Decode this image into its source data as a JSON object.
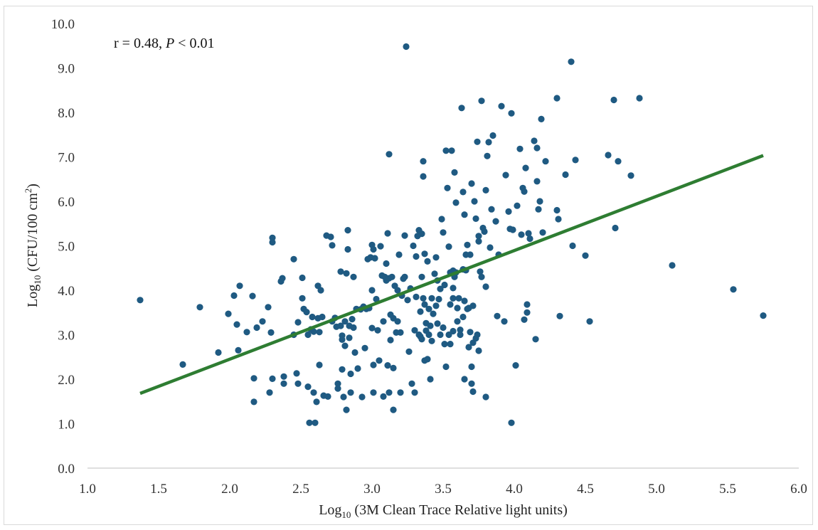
{
  "chart_data": {
    "type": "scatter",
    "xlabel": {
      "base": "Log",
      "sub": "10",
      "rest": " (3M Clean Trace Relative light units)"
    },
    "ylabel": {
      "base": "Log",
      "sub": "10",
      "rest": " (CFU/100 cm",
      "sup": "2",
      "end": ")"
    },
    "annotation": {
      "pre": "r = 0.48, ",
      "italic": "P",
      "post": " < 0.01"
    },
    "xlim": [
      1.0,
      6.0
    ],
    "ylim": [
      0.0,
      10.0
    ],
    "x_ticks": [
      "1.0",
      "1.5",
      "2.0",
      "2.5",
      "3.0",
      "3.5",
      "4.0",
      "4.5",
      "5.0",
      "5.5",
      "6.0"
    ],
    "y_ticks": [
      "0.0",
      "1.0",
      "2.0",
      "3.0",
      "4.0",
      "5.0",
      "6.0",
      "7.0",
      "8.0",
      "9.0",
      "10.0"
    ],
    "grid": false,
    "point_color": "#1f5a82",
    "trend_color": "#2e7d32",
    "trendline": {
      "x": [
        1.37,
        5.75
      ],
      "y": [
        1.68,
        7.03
      ]
    },
    "points": [
      [
        1.37,
        3.78
      ],
      [
        1.67,
        2.33
      ],
      [
        1.79,
        3.62
      ],
      [
        1.92,
        2.6
      ],
      [
        1.99,
        3.47
      ],
      [
        2.03,
        3.88
      ],
      [
        2.05,
        3.23
      ],
      [
        2.07,
        4.1
      ],
      [
        2.06,
        2.65
      ],
      [
        2.12,
        3.06
      ],
      [
        2.16,
        3.87
      ],
      [
        2.17,
        2.02
      ],
      [
        2.17,
        1.49
      ],
      [
        2.19,
        3.16
      ],
      [
        2.23,
        3.3
      ],
      [
        2.27,
        3.62
      ],
      [
        2.28,
        1.7
      ],
      [
        2.29,
        3.05
      ],
      [
        2.3,
        5.18
      ],
      [
        2.3,
        5.08
      ],
      [
        2.3,
        2.01
      ],
      [
        2.36,
        4.2
      ],
      [
        2.37,
        4.27
      ],
      [
        2.38,
        2.06
      ],
      [
        2.38,
        1.9
      ],
      [
        2.45,
        4.7
      ],
      [
        2.45,
        3.0
      ],
      [
        2.47,
        2.13
      ],
      [
        2.48,
        3.28
      ],
      [
        2.48,
        1.9
      ],
      [
        2.51,
        3.82
      ],
      [
        2.51,
        4.28
      ],
      [
        2.52,
        3.58
      ],
      [
        2.54,
        3.51
      ],
      [
        2.55,
        3.0
      ],
      [
        2.55,
        1.83
      ],
      [
        2.56,
        1.02
      ],
      [
        2.57,
        3.12
      ],
      [
        2.58,
        3.4
      ],
      [
        2.59,
        3.07
      ],
      [
        2.59,
        1.7
      ],
      [
        2.6,
        1.02
      ],
      [
        2.61,
        1.49
      ],
      [
        2.62,
        4.1
      ],
      [
        2.62,
        3.37
      ],
      [
        2.63,
        3.06
      ],
      [
        2.63,
        2.32
      ],
      [
        2.64,
        4.0
      ],
      [
        2.65,
        3.4
      ],
      [
        2.66,
        1.63
      ],
      [
        2.68,
        5.23
      ],
      [
        2.69,
        1.61
      ],
      [
        2.71,
        5.2
      ],
      [
        2.72,
        3.3
      ],
      [
        2.72,
        5.01
      ],
      [
        2.74,
        3.38
      ],
      [
        2.75,
        3.18
      ],
      [
        2.76,
        1.9
      ],
      [
        2.76,
        1.79
      ],
      [
        2.78,
        4.42
      ],
      [
        2.78,
        3.2
      ],
      [
        2.79,
        2.98
      ],
      [
        2.79,
        2.89
      ],
      [
        2.79,
        2.22
      ],
      [
        2.8,
        1.6
      ],
      [
        2.81,
        3.3
      ],
      [
        2.81,
        2.75
      ],
      [
        2.82,
        4.38
      ],
      [
        2.82,
        1.31
      ],
      [
        2.83,
        5.35
      ],
      [
        2.83,
        4.92
      ],
      [
        2.84,
        3.2
      ],
      [
        2.84,
        2.93
      ],
      [
        2.85,
        1.7
      ],
      [
        2.85,
        2.12
      ],
      [
        2.86,
        3.35
      ],
      [
        2.87,
        4.3
      ],
      [
        2.87,
        3.16
      ],
      [
        2.88,
        2.6
      ],
      [
        2.89,
        3.58
      ],
      [
        2.9,
        2.24
      ],
      [
        2.92,
        3.57
      ],
      [
        2.93,
        1.6
      ],
      [
        2.94,
        3.63
      ],
      [
        2.95,
        2.7
      ],
      [
        2.96,
        3.58
      ],
      [
        2.97,
        4.7
      ],
      [
        2.98,
        3.6
      ],
      [
        2.99,
        4.74
      ],
      [
        3.0,
        5.02
      ],
      [
        3.0,
        4.0
      ],
      [
        3.0,
        3.15
      ],
      [
        3.01,
        4.92
      ],
      [
        3.01,
        2.32
      ],
      [
        3.01,
        1.7
      ],
      [
        3.02,
        4.72
      ],
      [
        3.03,
        3.8
      ],
      [
        3.04,
        3.1
      ],
      [
        3.05,
        2.42
      ],
      [
        3.06,
        4.99
      ],
      [
        3.07,
        4.33
      ],
      [
        3.08,
        3.3
      ],
      [
        3.08,
        1.61
      ],
      [
        3.09,
        4.3
      ],
      [
        3.1,
        4.6
      ],
      [
        3.1,
        4.22
      ],
      [
        3.11,
        2.31
      ],
      [
        3.11,
        5.28
      ],
      [
        3.12,
        7.06
      ],
      [
        3.12,
        4.27
      ],
      [
        3.12,
        1.7
      ],
      [
        3.13,
        2.88
      ],
      [
        3.13,
        3.45
      ],
      [
        3.14,
        4.3
      ],
      [
        3.15,
        2.25
      ],
      [
        3.15,
        3.37
      ],
      [
        3.15,
        1.31
      ],
      [
        3.16,
        4.1
      ],
      [
        3.17,
        3.05
      ],
      [
        3.18,
        3.3
      ],
      [
        3.18,
        4.0
      ],
      [
        3.19,
        4.8
      ],
      [
        3.2,
        1.7
      ],
      [
        3.2,
        3.05
      ],
      [
        3.21,
        3.88
      ],
      [
        3.22,
        4.26
      ],
      [
        3.23,
        4.3
      ],
      [
        3.23,
        5.23
      ],
      [
        3.24,
        9.48
      ],
      [
        3.25,
        3.78
      ],
      [
        3.26,
        2.62
      ],
      [
        3.27,
        4.04
      ],
      [
        3.28,
        1.9
      ],
      [
        3.29,
        5.0
      ],
      [
        3.3,
        3.1
      ],
      [
        3.3,
        1.7
      ],
      [
        3.31,
        3.85
      ],
      [
        3.31,
        4.76
      ],
      [
        3.32,
        5.22
      ],
      [
        3.33,
        5.35
      ],
      [
        3.33,
        3.0
      ],
      [
        3.34,
        3.52
      ],
      [
        3.34,
        2.96
      ],
      [
        3.35,
        5.27
      ],
      [
        3.35,
        4.3
      ],
      [
        3.35,
        2.9
      ],
      [
        3.36,
        6.56
      ],
      [
        3.36,
        6.9
      ],
      [
        3.36,
        3.82
      ],
      [
        3.37,
        3.68
      ],
      [
        3.37,
        4.82
      ],
      [
        3.37,
        2.42
      ],
      [
        3.38,
        3.26
      ],
      [
        3.38,
        3.09
      ],
      [
        3.39,
        4.65
      ],
      [
        3.39,
        2.45
      ],
      [
        3.4,
        3.58
      ],
      [
        3.4,
        3.0
      ],
      [
        3.41,
        3.2
      ],
      [
        3.41,
        2.0
      ],
      [
        3.42,
        3.82
      ],
      [
        3.42,
        2.86
      ],
      [
        3.43,
        3.47
      ],
      [
        3.44,
        4.37
      ],
      [
        3.45,
        4.74
      ],
      [
        3.45,
        3.65
      ],
      [
        3.46,
        4.22
      ],
      [
        3.46,
        3.25
      ],
      [
        3.47,
        3.8
      ],
      [
        3.48,
        4.03
      ],
      [
        3.48,
        3.0
      ],
      [
        3.49,
        5.6
      ],
      [
        3.5,
        5.3
      ],
      [
        3.5,
        3.16
      ],
      [
        3.51,
        4.12
      ],
      [
        3.51,
        2.79
      ],
      [
        3.52,
        7.14
      ],
      [
        3.52,
        2.28
      ],
      [
        3.53,
        6.3
      ],
      [
        3.54,
        4.98
      ],
      [
        3.54,
        3.0
      ],
      [
        3.55,
        4.4
      ],
      [
        3.55,
        3.68
      ],
      [
        3.55,
        2.79
      ],
      [
        3.56,
        7.14
      ],
      [
        3.57,
        4.44
      ],
      [
        3.57,
        3.82
      ],
      [
        3.57,
        4.05
      ],
      [
        3.57,
        3.08
      ],
      [
        3.58,
        6.65
      ],
      [
        3.58,
        4.3
      ],
      [
        3.59,
        5.97
      ],
      [
        3.59,
        4.4
      ],
      [
        3.6,
        3.3
      ],
      [
        3.6,
        3.6
      ],
      [
        3.61,
        3.82
      ],
      [
        3.62,
        3.11
      ],
      [
        3.62,
        3.0
      ],
      [
        3.63,
        8.1
      ],
      [
        3.64,
        6.21
      ],
      [
        3.64,
        4.47
      ],
      [
        3.64,
        3.4
      ],
      [
        3.65,
        5.7
      ],
      [
        3.65,
        3.76
      ],
      [
        3.65,
        2.0
      ],
      [
        3.66,
        4.45
      ],
      [
        3.66,
        4.8
      ],
      [
        3.67,
        5.02
      ],
      [
        3.67,
        3.58
      ],
      [
        3.68,
        3.6
      ],
      [
        3.68,
        2.72
      ],
      [
        3.69,
        4.8
      ],
      [
        3.69,
        3.06
      ],
      [
        3.7,
        6.4
      ],
      [
        3.7,
        2.28
      ],
      [
        3.7,
        1.9
      ],
      [
        3.71,
        3.65
      ],
      [
        3.71,
        2.82
      ],
      [
        3.71,
        1.72
      ],
      [
        3.72,
        6.0
      ],
      [
        3.73,
        5.61
      ],
      [
        3.73,
        2.92
      ],
      [
        3.74,
        7.34
      ],
      [
        3.74,
        3.0
      ],
      [
        3.75,
        5.1
      ],
      [
        3.75,
        5.22
      ],
      [
        3.75,
        2.64
      ],
      [
        3.76,
        4.42
      ],
      [
        3.77,
        8.26
      ],
      [
        3.77,
        4.3
      ],
      [
        3.78,
        5.4
      ],
      [
        3.79,
        5.32
      ],
      [
        3.8,
        6.25
      ],
      [
        3.8,
        4.08
      ],
      [
        3.8,
        1.6
      ],
      [
        3.81,
        7.02
      ],
      [
        3.82,
        7.33
      ],
      [
        3.83,
        4.96
      ],
      [
        3.84,
        5.82
      ],
      [
        3.85,
        7.48
      ],
      [
        3.87,
        5.55
      ],
      [
        3.88,
        3.42
      ],
      [
        3.89,
        4.8
      ],
      [
        3.91,
        8.14
      ],
      [
        3.93,
        3.3
      ],
      [
        3.94,
        6.59
      ],
      [
        3.96,
        5.77
      ],
      [
        3.97,
        5.38
      ],
      [
        3.98,
        1.02
      ],
      [
        3.98,
        7.98
      ],
      [
        3.99,
        5.36
      ],
      [
        4.01,
        2.31
      ],
      [
        4.02,
        5.9
      ],
      [
        4.04,
        7.18
      ],
      [
        4.05,
        5.25
      ],
      [
        4.06,
        6.3
      ],
      [
        4.07,
        3.34
      ],
      [
        4.07,
        6.22
      ],
      [
        4.08,
        6.75
      ],
      [
        4.09,
        3.68
      ],
      [
        4.09,
        3.5
      ],
      [
        4.1,
        5.28
      ],
      [
        4.11,
        5.16
      ],
      [
        4.14,
        7.36
      ],
      [
        4.15,
        2.9
      ],
      [
        4.16,
        6.45
      ],
      [
        4.16,
        7.2
      ],
      [
        4.17,
        5.82
      ],
      [
        4.18,
        6.0
      ],
      [
        4.19,
        7.85
      ],
      [
        4.2,
        5.3
      ],
      [
        4.22,
        6.9
      ],
      [
        4.3,
        8.32
      ],
      [
        4.3,
        5.8
      ],
      [
        4.31,
        5.6
      ],
      [
        4.32,
        3.42
      ],
      [
        4.36,
        6.6
      ],
      [
        4.4,
        9.14
      ],
      [
        4.41,
        5.0
      ],
      [
        4.43,
        6.93
      ],
      [
        4.5,
        4.78
      ],
      [
        4.53,
        3.3
      ],
      [
        4.66,
        7.04
      ],
      [
        4.7,
        8.28
      ],
      [
        4.71,
        5.4
      ],
      [
        4.73,
        6.9
      ],
      [
        4.82,
        6.58
      ],
      [
        4.88,
        8.32
      ],
      [
        5.11,
        4.56
      ],
      [
        5.54,
        4.02
      ],
      [
        5.75,
        3.43
      ]
    ]
  }
}
